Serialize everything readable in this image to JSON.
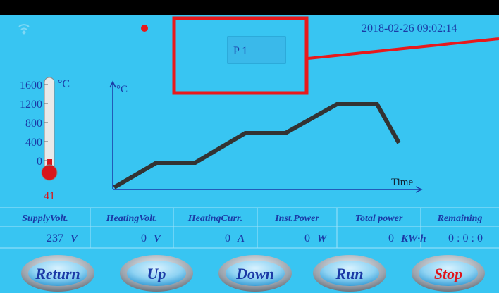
{
  "status": {
    "datetime": "2018-02-26 09:02:14"
  },
  "program": {
    "label": "P 1"
  },
  "thermometer": {
    "unit": "°C",
    "scale": [
      "1600",
      "1200",
      "800",
      "400",
      "0"
    ],
    "reading": "41"
  },
  "profile_chart": {
    "y_label": "°C",
    "x_label": "Time"
  },
  "table": {
    "headers": [
      "SupplyVolt.",
      "HeatingVolt.",
      "HeatingCurr.",
      "Inst.Power",
      "Total power",
      "Remaining"
    ],
    "values": [
      [
        "237",
        "V"
      ],
      [
        "0",
        "V"
      ],
      [
        "0",
        "A"
      ],
      [
        "0",
        "W"
      ],
      [
        "0",
        "KW·h"
      ],
      [
        "0 : 0 : 0",
        null
      ]
    ]
  },
  "buttons": [
    "Return",
    "Up",
    "Down",
    "Run",
    "Stop"
  ]
}
